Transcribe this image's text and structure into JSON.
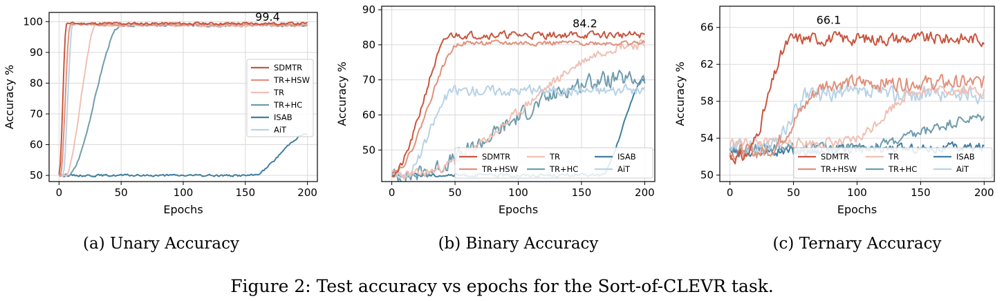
{
  "figure_caption": "Figure 2: Test accuracy vs epochs for the Sort-of-CLEVR task.",
  "colors": {
    "SDMTR": "#c9553e",
    "TR+HSW": "#e0907b",
    "TR": "#efc0b4",
    "TR+HC": "#6e9cad",
    "ISAB": "#3f7ea0",
    "AiT": "#b7d2e6"
  },
  "chart_data": [
    {
      "type": "line",
      "caption": "(a) Unary Accuracy",
      "xlabel": "Epochs",
      "ylabel": "Accuracy %",
      "xlim": [
        -8,
        208
      ],
      "ylim": [
        48,
        103
      ],
      "xticks": [
        0,
        50,
        100,
        150,
        200
      ],
      "yticks": [
        50,
        60,
        70,
        80,
        90,
        100
      ],
      "grid": true,
      "legend": {
        "position": "right",
        "columns": 1
      },
      "annotation": {
        "text": "99.4",
        "x": 158,
        "y": 99.4
      },
      "series": [
        {
          "name": "SDMTR",
          "start": 50,
          "final": 99.4,
          "x_rise": 0,
          "x_plateau": 6,
          "noise": 0.35,
          "seed": 11
        },
        {
          "name": "TR+HSW",
          "start": 50,
          "final": 99.0,
          "x_rise": 1,
          "x_plateau": 9,
          "noise": 0.35,
          "seed": 12
        },
        {
          "name": "TR",
          "start": 50,
          "final": 98.8,
          "x_rise": 5,
          "x_plateau": 30,
          "noise": 0.4,
          "seed": 13
        },
        {
          "name": "TR+HC",
          "start": 50,
          "final": 98.8,
          "x_rise": 7,
          "x_plateau": 50,
          "noise": 0.4,
          "seed": 14
        },
        {
          "name": "ISAB",
          "start": 50,
          "final": 63.5,
          "x_rise": 155,
          "x_plateau": 200,
          "noise": 0.3,
          "seed": 15
        },
        {
          "name": "AiT",
          "start": 50,
          "final": 99.0,
          "x_rise": 3,
          "x_plateau": 11,
          "noise": 0.35,
          "seed": 16
        }
      ]
    },
    {
      "type": "line",
      "caption": "(b) Binary Accuracy",
      "xlabel": "Epochs",
      "ylabel": "Accuracy %",
      "xlim": [
        -8,
        208
      ],
      "ylim": [
        41,
        91
      ],
      "xticks": [
        0,
        50,
        100,
        150,
        200
      ],
      "yticks": [
        50,
        60,
        70,
        80,
        90
      ],
      "grid": true,
      "legend": {
        "position": "bottom-right",
        "columns": 3
      },
      "annotation": {
        "text": "84.2",
        "x": 143,
        "y": 84.2
      },
      "series": [
        {
          "name": "SDMTR",
          "start": 43,
          "final": 82.8,
          "x_rise": 0,
          "x_plateau": 48,
          "noise": 0.9,
          "seed": 21
        },
        {
          "name": "TR+HSW",
          "start": 44,
          "final": 80.5,
          "x_rise": 2,
          "x_plateau": 55,
          "noise": 0.6,
          "seed": 22
        },
        {
          "name": "TR",
          "start": 43,
          "final": 80.0,
          "x_rise": 15,
          "x_plateau": 190,
          "noise": 1.2,
          "seed": 23
        },
        {
          "name": "TR+HC",
          "start": 42.5,
          "final": 70.0,
          "x_rise": 5,
          "x_plateau": 170,
          "noise": 2.0,
          "seed": 24
        },
        {
          "name": "ISAB",
          "start": 42.8,
          "final": 70.0,
          "x_rise": 165,
          "x_plateau": 200,
          "noise": 0.4,
          "seed": 25
        },
        {
          "name": "AiT",
          "start": 43,
          "final": 67.0,
          "x_rise": 10,
          "x_plateau": 50,
          "noise": 1.3,
          "seed": 26
        }
      ]
    },
    {
      "type": "line",
      "caption": "(c) Ternary Accuracy",
      "xlabel": "Epochs",
      "ylabel": "Accuracy %",
      "xlim": [
        -8,
        208
      ],
      "ylim": [
        49.3,
        68.3
      ],
      "xticks": [
        0,
        50,
        100,
        150,
        200
      ],
      "yticks": [
        50,
        54,
        58,
        62,
        66
      ],
      "grid": true,
      "legend": {
        "position": "bottom-right",
        "columns": 3
      },
      "annotation": {
        "text": "66.1",
        "x": 68,
        "y": 66.1
      },
      "series": [
        {
          "name": "SDMTR",
          "start": 52,
          "final": 64.8,
          "x_rise": 10,
          "x_plateau": 50,
          "noise": 0.6,
          "seed": 31
        },
        {
          "name": "TR+HSW",
          "start": 52.5,
          "final": 60.0,
          "x_rise": 25,
          "x_plateau": 80,
          "noise": 0.7,
          "seed": 32
        },
        {
          "name": "TR",
          "start": 53.5,
          "final": 59.2,
          "x_rise": 90,
          "x_plateau": 150,
          "noise": 0.5,
          "seed": 33
        },
        {
          "name": "TR+HC",
          "start": 53.0,
          "final": 56.2,
          "x_rise": 100,
          "x_plateau": 200,
          "noise": 0.5,
          "seed": 34
        },
        {
          "name": "ISAB",
          "start": 52.5,
          "final": 53.0,
          "x_rise": 0,
          "x_plateau": 200,
          "noise": 0.45,
          "seed": 35
        },
        {
          "name": "AiT",
          "start": 53.0,
          "final": 58.8,
          "x_rise": 30,
          "x_plateau": 65,
          "noise": 0.8,
          "seed": 36
        }
      ]
    }
  ]
}
